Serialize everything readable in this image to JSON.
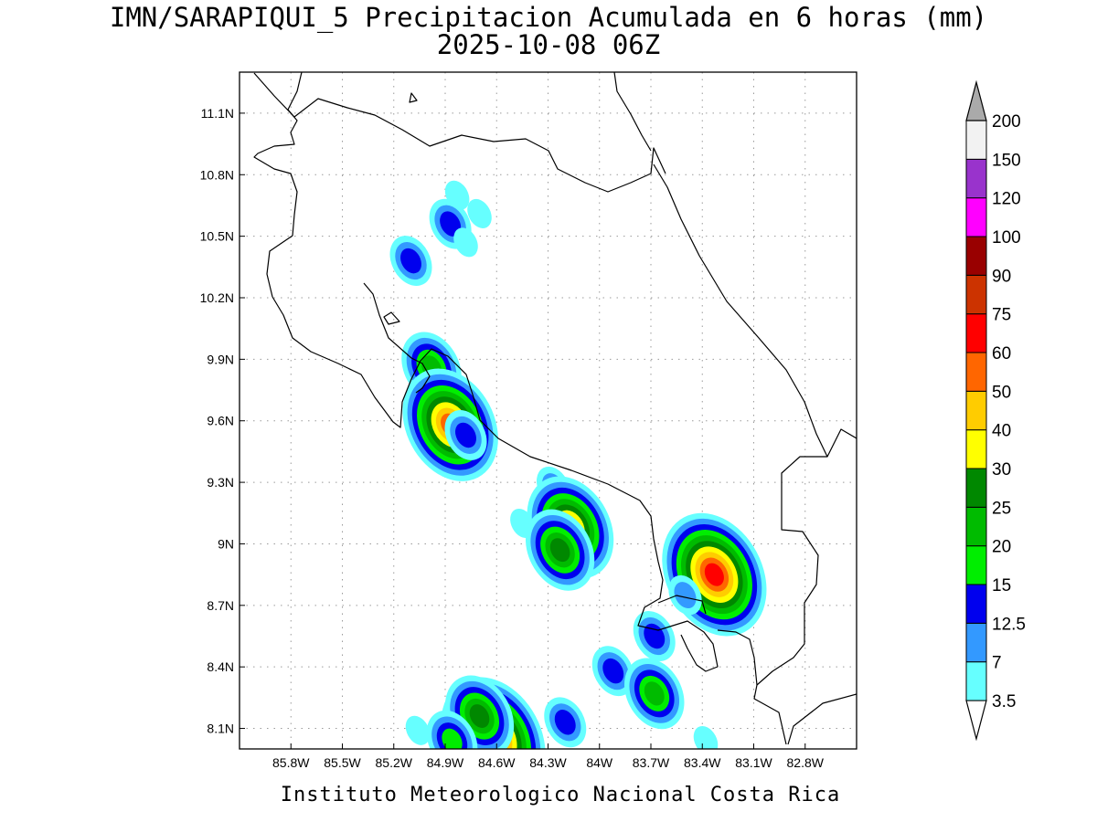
{
  "title": {
    "line1": "IMN/SARAPIQUI_5 Precipitacion Acumulada en 6 horas (mm)",
    "line2": "2025-10-08 06Z"
  },
  "footer": "Instituto Meteorologico Nacional Costa Rica",
  "map": {
    "lon_range": [
      -86.1,
      -82.5
    ],
    "lat_range": [
      8.0,
      11.3
    ],
    "lon_ticks": [
      "85.8W",
      "85.5W",
      "85.2W",
      "84.9W",
      "84.6W",
      "84.3W",
      "84W",
      "83.7W",
      "83.4W",
      "83.1W",
      "82.8W"
    ],
    "lon_tick_values": [
      -85.8,
      -85.5,
      -85.2,
      -84.9,
      -84.6,
      -84.3,
      -84.0,
      -83.7,
      -83.4,
      -83.1,
      -82.8
    ],
    "lat_ticks": [
      "8.1N",
      "8.4N",
      "8.7N",
      "9N",
      "9.3N",
      "9.6N",
      "9.9N",
      "10.2N",
      "10.5N",
      "10.8N",
      "11.1N"
    ],
    "lat_tick_values": [
      8.1,
      8.4,
      8.7,
      9.0,
      9.3,
      9.6,
      9.9,
      10.2,
      10.5,
      10.8,
      11.1
    ],
    "grid": true,
    "grid_style": "dotted"
  },
  "colorbar": {
    "placement": "right",
    "labels": [
      "3.5",
      "7",
      "12.5",
      "15",
      "20",
      "25",
      "30",
      "40",
      "50",
      "60",
      "75",
      "90",
      "100",
      "120",
      "150",
      "200"
    ],
    "colors": [
      "#66ffff",
      "#3399ff",
      "#0000ee",
      "#00ee00",
      "#00bb00",
      "#008800",
      "#ffff00",
      "#ffcc00",
      "#ff6600",
      "#ff0000",
      "#cc3300",
      "#990000",
      "#ff00ff",
      "#9933cc",
      "#f2f2f2",
      "#aaaaaa"
    ]
  },
  "precip_cells": [
    {
      "lon": -84.83,
      "lat": 10.7,
      "level": 0
    },
    {
      "lon": -84.87,
      "lat": 10.56,
      "level": 2
    },
    {
      "lon": -84.7,
      "lat": 10.61,
      "level": 0
    },
    {
      "lon": -84.78,
      "lat": 10.47,
      "level": 0
    },
    {
      "lon": -85.1,
      "lat": 10.38,
      "level": 2
    },
    {
      "lon": -84.98,
      "lat": 9.86,
      "level": 4
    },
    {
      "lon": -84.87,
      "lat": 9.58,
      "level": 8
    },
    {
      "lon": -84.78,
      "lat": 9.53,
      "level": 2
    },
    {
      "lon": -84.45,
      "lat": 9.1,
      "level": 0
    },
    {
      "lon": -84.27,
      "lat": 9.28,
      "level": 1
    },
    {
      "lon": -84.17,
      "lat": 9.08,
      "level": 7
    },
    {
      "lon": -84.23,
      "lat": 8.97,
      "level": 5
    },
    {
      "lon": -83.33,
      "lat": 8.85,
      "level": 9
    },
    {
      "lon": -83.5,
      "lat": 8.75,
      "level": 1
    },
    {
      "lon": -83.68,
      "lat": 8.55,
      "level": 2
    },
    {
      "lon": -83.92,
      "lat": 8.38,
      "level": 2
    },
    {
      "lon": -83.68,
      "lat": 8.27,
      "level": 4
    },
    {
      "lon": -84.62,
      "lat": 8.05,
      "level": 9
    },
    {
      "lon": -84.7,
      "lat": 8.16,
      "level": 5
    },
    {
      "lon": -84.2,
      "lat": 8.13,
      "level": 2
    },
    {
      "lon": -84.86,
      "lat": 8.04,
      "level": 3
    },
    {
      "lon": -85.06,
      "lat": 8.09,
      "level": 0
    },
    {
      "lon": -83.38,
      "lat": 8.04,
      "level": 0
    }
  ]
}
